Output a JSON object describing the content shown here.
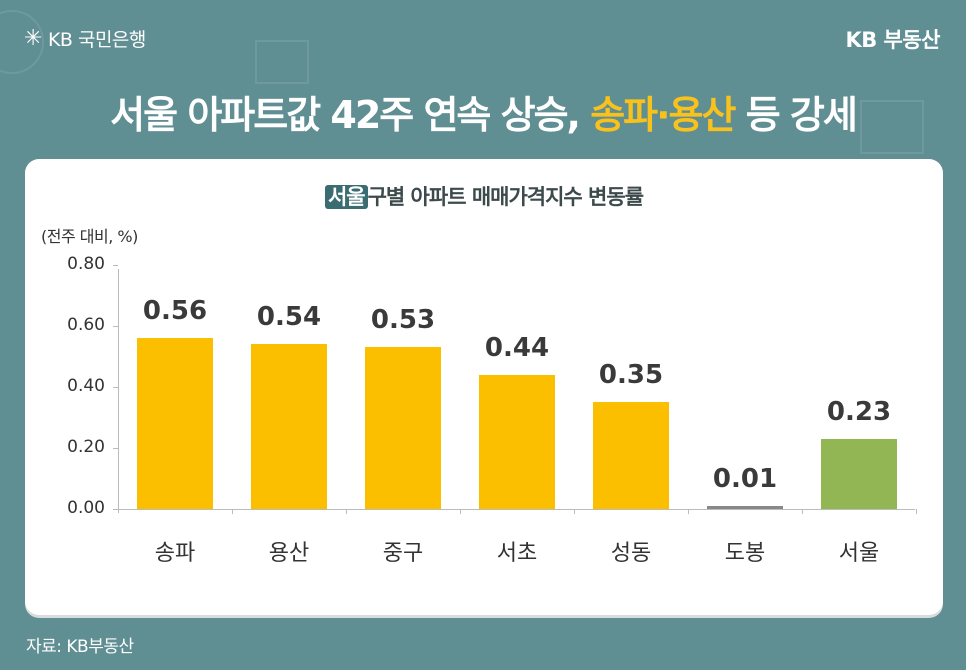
{
  "header": {
    "left_logo_text": "KB 국민은행",
    "left_logo_icon": "kb-star-icon",
    "right_logo_text": "KB 부동산"
  },
  "headline": {
    "part1": "서울 아파트값 42주 연속 상승, ",
    "highlight": "송파·용산",
    "part2": " 등 강세"
  },
  "chart_title": {
    "tag": "서울",
    "rest": "구별 아파트 매매가격지수 변동률"
  },
  "footer": {
    "source": "자료: KB부동산"
  },
  "colors": {
    "background": "#5f8e93",
    "bar_default": "#fbbf00",
    "bar_seoul": "#93b655",
    "bar_dobong": "#888888",
    "highlight_text": "#f9c11c"
  },
  "chart_data": {
    "type": "bar",
    "title": "서울 구별 아파트 매매가격지수 변동률",
    "xlabel": "",
    "ylabel": "(전주 대비, %)",
    "ylim": [
      0,
      0.8
    ],
    "yticks": [
      "0.00",
      "0.20",
      "0.40",
      "0.60",
      "0.80"
    ],
    "categories": [
      "송파",
      "용산",
      "중구",
      "서초",
      "성동",
      "도봉",
      "서울"
    ],
    "values": [
      0.56,
      0.54,
      0.53,
      0.44,
      0.35,
      0.01,
      0.23
    ],
    "value_labels": [
      "0.56",
      "0.54",
      "0.53",
      "0.44",
      "0.35",
      "0.01",
      "0.23"
    ],
    "grid": false,
    "legend": "none"
  }
}
